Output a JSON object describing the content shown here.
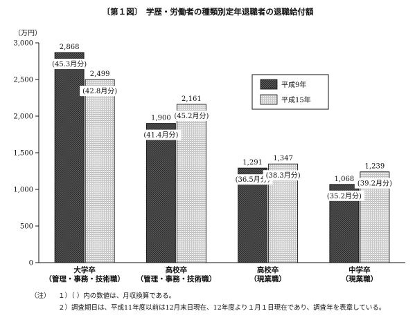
{
  "chart_data": {
    "type": "bar",
    "title": "〔第１図〕　学歴・労働者の種類別定年退職者の退職給付額",
    "ylabel": "（万円）",
    "ylim": [
      0,
      3000
    ],
    "yticks": [
      0,
      500,
      1000,
      1500,
      2000,
      2500,
      3000
    ],
    "ytick_labels": [
      "0",
      "500",
      "1,000",
      "1,500",
      "2,000",
      "2,500",
      "3,000"
    ],
    "grid": false,
    "legend_position": "upper-right",
    "categories": [
      [
        "大学卒",
        "（管理・事務・技術職）"
      ],
      [
        "高校卒",
        "（管理・事務・技術職）"
      ],
      [
        "高校卒",
        "（現業職）"
      ],
      [
        "中学卒",
        "（現業職）"
      ]
    ],
    "series": [
      {
        "name": "平成9年",
        "color": "#4a4a4a",
        "pattern": "dark-crosshatch",
        "values": [
          2868,
          1900,
          1291,
          1068
        ],
        "value_labels": [
          "2,868",
          "1,900",
          "1,291",
          "1,068"
        ],
        "month_labels": [
          "(45.3月分)",
          "(41.4月分)",
          "(36.5月分)",
          "(35.2月分)"
        ]
      },
      {
        "name": "平成15年",
        "color": "#d8d8d8",
        "pattern": "light-grid",
        "values": [
          2499,
          2161,
          1347,
          1239
        ],
        "value_labels": [
          "2,499",
          "2,161",
          "1,347",
          "1,239"
        ],
        "month_labels": [
          "(42.8月分)",
          "(45.2月分)",
          "(38.3月分)",
          "(39.2月分)"
        ]
      }
    ]
  },
  "notes": {
    "prefix": "（注）",
    "line1": "１）（ ）内の数値は、月収換算である。",
    "line2": "２）調査期日は、平成11年度以前は12月末日現在、12年度より１月１日現在であり、調査年を表章している。"
  }
}
